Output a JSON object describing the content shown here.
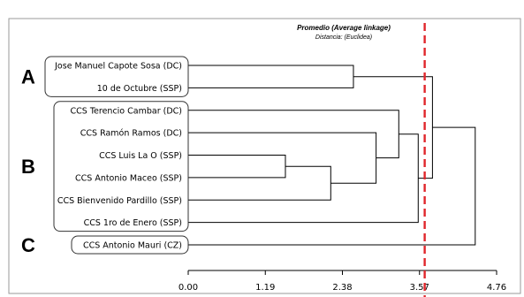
{
  "chart_data": {
    "type": "dendrogram",
    "title": "Promedio (Average linkage)",
    "subtitle": "Distancia: (Euclidea)",
    "x_ticks": [
      "0.00",
      "1.19",
      "2.38",
      "3.57",
      "4.76"
    ],
    "xlim": [
      0,
      4.76
    ],
    "cutoff": 3.65,
    "leaves": [
      "Jose Manuel Capote Sosa (DC)",
      "10 de Octubre (SSP)",
      "CCS Terencio Cambar (DC)",
      "CCS Ramón Ramos (DC)",
      "CCS Luis La O (SSP)",
      "CCS Antonio Maceo (SSP)",
      "CCS Bienvenido Pardillo (SSP)",
      "CCS 1ro de Enero (SSP)",
      "CCS Antonio Mauri (CZ)"
    ],
    "groups": [
      {
        "label": "A",
        "from": 0,
        "to": 1
      },
      {
        "label": "B",
        "from": 2,
        "to": 7
      },
      {
        "label": "C",
        "from": 8,
        "to": 8
      }
    ],
    "merges": [
      {
        "id": "m1",
        "a": "L4",
        "b": "L5",
        "height": 1.5
      },
      {
        "id": "m2",
        "a": "m1",
        "b": "L6",
        "height": 2.2
      },
      {
        "id": "m3",
        "a": "L3",
        "b": "m2",
        "height": 2.9
      },
      {
        "id": "m4",
        "a": "L2",
        "b": "m3",
        "height": 3.25
      },
      {
        "id": "m5",
        "a": "L0",
        "b": "L1",
        "height": 2.55
      },
      {
        "id": "m6",
        "a": "m4",
        "b": "L7",
        "height": 3.55
      },
      {
        "id": "m7",
        "a": "m5",
        "b": "m6",
        "height": 3.77
      },
      {
        "id": "m8",
        "a": "m7",
        "b": "L8",
        "height": 4.43
      }
    ]
  }
}
